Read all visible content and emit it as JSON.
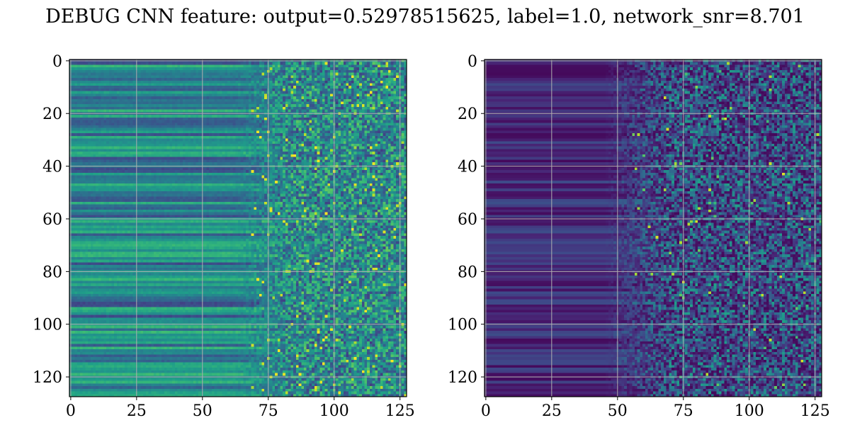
{
  "figure": {
    "title": "DEBUG CNN feature: output=0.52978515625, label=1.0, network_snr=8.701"
  },
  "chart_data": [
    {
      "type": "heatmap",
      "colormap": "viridis",
      "rows": 128,
      "cols": 128,
      "xlim": [
        -0.5,
        127.5
      ],
      "ylim": [
        127.5,
        -0.5
      ],
      "xticks": [
        0,
        25,
        50,
        75,
        100,
        125
      ],
      "yticks": [
        0,
        20,
        40,
        60,
        80,
        100,
        120
      ],
      "xtick_labels": [
        "0",
        "25",
        "50",
        "75",
        "100",
        "125"
      ],
      "ytick_labels": [
        "0",
        "20",
        "40",
        "60",
        "80",
        "100",
        "120"
      ],
      "grid": true,
      "grid_color": "#b0b0b0",
      "pattern": "horizontal bands on the left (cols 0-70), noisy speckle on the right (cols 70-127); mid-range intensity",
      "seed": 7
    },
    {
      "type": "heatmap",
      "colormap": "viridis",
      "rows": 128,
      "cols": 128,
      "xlim": [
        -0.5,
        127.5
      ],
      "ylim": [
        127.5,
        -0.5
      ],
      "xticks": [
        0,
        25,
        50,
        75,
        100,
        125
      ],
      "yticks": [
        0,
        20,
        40,
        60,
        80,
        100,
        120
      ],
      "xtick_labels": [
        "0",
        "25",
        "50",
        "75",
        "100",
        "125"
      ],
      "ytick_labels": [
        "0",
        "20",
        "40",
        "60",
        "80",
        "100",
        "120"
      ],
      "grid": true,
      "grid_color": "#b0b0b0",
      "pattern": "dark faint bands on the left (cols 0-50), sparse bright speckle on the right (cols 50-127); low intensity",
      "seed": 13
    }
  ]
}
